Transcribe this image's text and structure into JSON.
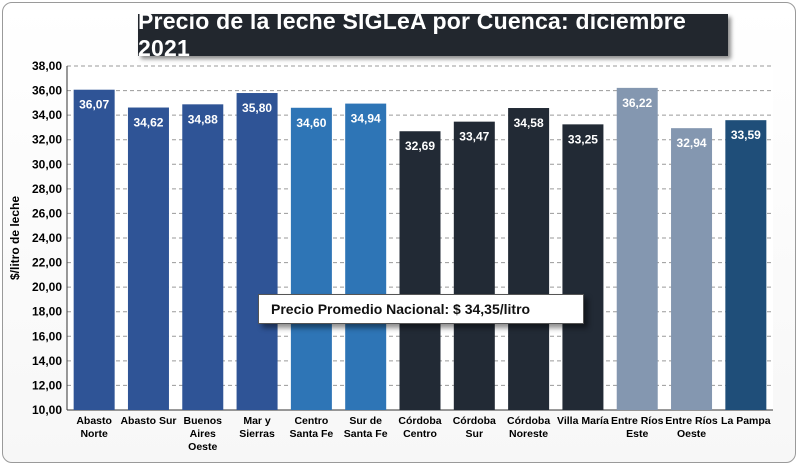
{
  "chart_data": {
    "type": "bar",
    "title": "Precio de la leche SIGLeA  por Cuenca: diciembre 2021",
    "ylabel": "$/litro de leche",
    "xlabel": "",
    "ylim": [
      10,
      38
    ],
    "yticks": [
      "10,00",
      "12,00",
      "14,00",
      "16,00",
      "18,00",
      "20,00",
      "22,00",
      "24,00",
      "26,00",
      "28,00",
      "30,00",
      "32,00",
      "34,00",
      "36,00",
      "38,00"
    ],
    "grid": true,
    "categories": [
      [
        "Abasto",
        "Norte"
      ],
      [
        "Abasto Sur"
      ],
      [
        "Buenos",
        "Aires",
        "Oeste"
      ],
      [
        "Mar y",
        "Sierras"
      ],
      [
        "Centro",
        "Santa Fe"
      ],
      [
        "Sur de",
        "Santa Fe"
      ],
      [
        "Córdoba",
        "Centro"
      ],
      [
        "Córdoba",
        "Sur"
      ],
      [
        "Córdoba",
        "Noreste"
      ],
      [
        "Villa María"
      ],
      [
        "Entre Ríos",
        "Este"
      ],
      [
        "Entre Ríos",
        "Oeste"
      ],
      [
        "La Pampa"
      ]
    ],
    "values": [
      36.07,
      34.62,
      34.88,
      35.8,
      34.6,
      34.94,
      32.69,
      33.47,
      34.58,
      33.25,
      36.22,
      32.94,
      33.59
    ],
    "value_labels": [
      "36,07",
      "34,62",
      "34,88",
      "35,80",
      "34,60",
      "34,94",
      "32,69",
      "33,47",
      "34,58",
      "33,25",
      "36,22",
      "32,94",
      "33,59"
    ],
    "colors": [
      "#2f5496",
      "#2f5496",
      "#2f5496",
      "#2f5496",
      "#2e75b6",
      "#2e75b6",
      "#222a35",
      "#222a35",
      "#222a35",
      "#222a35",
      "#8497b0",
      "#8497b0",
      "#1f4e79"
    ],
    "annotation": "Precio Promedio Nacional: $ 34,35/litro"
  }
}
